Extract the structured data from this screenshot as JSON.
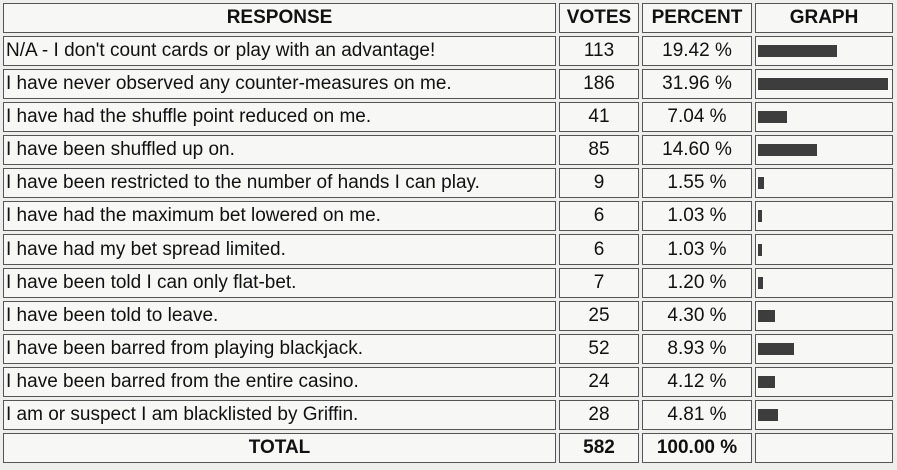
{
  "chart_data": {
    "type": "table",
    "columns": [
      "RESPONSE",
      "VOTES",
      "PERCENT",
      "GRAPH"
    ],
    "rows": [
      {
        "response": "N/A - I don't count cards or play with an advantage!",
        "votes": 113,
        "percent": "19.42 %",
        "value": 19.42
      },
      {
        "response": "I have never observed any counter-measures on me.",
        "votes": 186,
        "percent": "31.96 %",
        "value": 31.96
      },
      {
        "response": "I have had the shuffle point reduced on me.",
        "votes": 41,
        "percent": "7.04 %",
        "value": 7.04
      },
      {
        "response": "I have been shuffled up on.",
        "votes": 85,
        "percent": "14.60 %",
        "value": 14.6
      },
      {
        "response": "I have been restricted to the number of hands I can play.",
        "votes": 9,
        "percent": "1.55 %",
        "value": 1.55
      },
      {
        "response": "I have had the maximum bet lowered on me.",
        "votes": 6,
        "percent": "1.03 %",
        "value": 1.03
      },
      {
        "response": "I have had my bet spread limited.",
        "votes": 6,
        "percent": "1.03 %",
        "value": 1.03
      },
      {
        "response": "I have been told I can only flat-bet.",
        "votes": 7,
        "percent": "1.20 %",
        "value": 1.2
      },
      {
        "response": "I have been told to leave.",
        "votes": 25,
        "percent": "4.30 %",
        "value": 4.3
      },
      {
        "response": "I have been barred from playing blackjack.",
        "votes": 52,
        "percent": "8.93 %",
        "value": 8.93
      },
      {
        "response": "I have been barred from the entire casino.",
        "votes": 24,
        "percent": "4.12 %",
        "value": 4.12
      },
      {
        "response": "I am or suspect I am blacklisted by Griffin.",
        "votes": 28,
        "percent": "4.81 %",
        "value": 4.81
      }
    ],
    "total": {
      "label": "TOTAL",
      "votes": 582,
      "percent": "100.00 %"
    },
    "bar_max_value": 31.96,
    "bar_color": "#3d3d3d"
  }
}
